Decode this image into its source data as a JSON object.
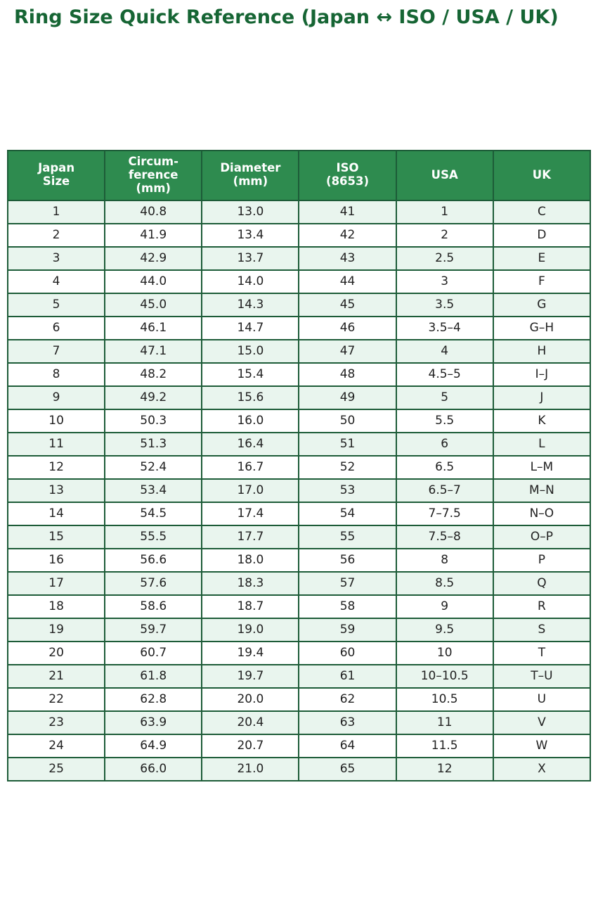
{
  "page": {
    "title": "Ring Size Quick Reference (Japan ↔ ISO / USA / UK)"
  },
  "colors": {
    "title_color": "#166534",
    "header_bg": "#2e8b4f",
    "header_text": "#ffffff",
    "border": "#1d5c38",
    "row_alt_bg": "#e9f5ee",
    "row_bg": "#ffffff",
    "cell_text": "#212121"
  },
  "chart_data": {
    "type": "table",
    "title": "Ring Size Quick Reference (Japan ↔ ISO / USA / UK)",
    "columns": [
      "Japan\nSize",
      "Circum-\nference\n(mm)",
      "Diameter\n(mm)",
      "ISO\n(8653)",
      "USA",
      "UK"
    ],
    "rows": [
      [
        "1",
        "40.8",
        "13.0",
        "41",
        "1",
        "C"
      ],
      [
        "2",
        "41.9",
        "13.4",
        "42",
        "2",
        "D"
      ],
      [
        "3",
        "42.9",
        "13.7",
        "43",
        "2.5",
        "E"
      ],
      [
        "4",
        "44.0",
        "14.0",
        "44",
        "3",
        "F"
      ],
      [
        "5",
        "45.0",
        "14.3",
        "45",
        "3.5",
        "G"
      ],
      [
        "6",
        "46.1",
        "14.7",
        "46",
        "3.5–4",
        "G–H"
      ],
      [
        "7",
        "47.1",
        "15.0",
        "47",
        "4",
        "H"
      ],
      [
        "8",
        "48.2",
        "15.4",
        "48",
        "4.5–5",
        "I–J"
      ],
      [
        "9",
        "49.2",
        "15.6",
        "49",
        "5",
        "J"
      ],
      [
        "10",
        "50.3",
        "16.0",
        "50",
        "5.5",
        "K"
      ],
      [
        "11",
        "51.3",
        "16.4",
        "51",
        "6",
        "L"
      ],
      [
        "12",
        "52.4",
        "16.7",
        "52",
        "6.5",
        "L–M"
      ],
      [
        "13",
        "53.4",
        "17.0",
        "53",
        "6.5–7",
        "M–N"
      ],
      [
        "14",
        "54.5",
        "17.4",
        "54",
        "7–7.5",
        "N–O"
      ],
      [
        "15",
        "55.5",
        "17.7",
        "55",
        "7.5–8",
        "O–P"
      ],
      [
        "16",
        "56.6",
        "18.0",
        "56",
        "8",
        "P"
      ],
      [
        "17",
        "57.6",
        "18.3",
        "57",
        "8.5",
        "Q"
      ],
      [
        "18",
        "58.6",
        "18.7",
        "58",
        "9",
        "R"
      ],
      [
        "19",
        "59.7",
        "19.0",
        "59",
        "9.5",
        "S"
      ],
      [
        "20",
        "60.7",
        "19.4",
        "60",
        "10",
        "T"
      ],
      [
        "21",
        "61.8",
        "19.7",
        "61",
        "10–10.5",
        "T–U"
      ],
      [
        "22",
        "62.8",
        "20.0",
        "62",
        "10.5",
        "U"
      ],
      [
        "23",
        "63.9",
        "20.4",
        "63",
        "11",
        "V"
      ],
      [
        "24",
        "64.9",
        "20.7",
        "64",
        "11.5",
        "W"
      ],
      [
        "25",
        "66.0",
        "21.0",
        "65",
        "12",
        "X"
      ]
    ]
  }
}
